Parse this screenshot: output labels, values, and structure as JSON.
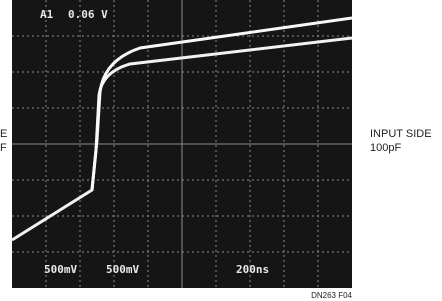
{
  "screen": {
    "readout": [
      "A1",
      "0.06 V"
    ],
    "scales": [
      "500mV",
      "500mV",
      "200ns"
    ]
  },
  "left_label": [
    "E",
    "F"
  ],
  "right_label": [
    "INPUT SIDE",
    "100pF"
  ],
  "figure_id": "DN263 F04"
}
